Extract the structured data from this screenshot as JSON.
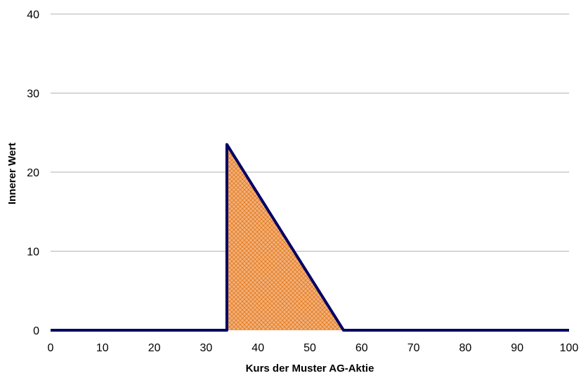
{
  "chart_data": {
    "type": "area",
    "title": "",
    "xlabel": "Kurs der Muster AG-Aktie",
    "ylabel": "Innerer Wert",
    "xlim": [
      0,
      100
    ],
    "ylim": [
      0,
      40
    ],
    "x_ticks": [
      "0",
      "10",
      "20",
      "30",
      "40",
      "50",
      "60",
      "70",
      "80",
      "90",
      "100"
    ],
    "y_ticks": [
      "0",
      "10",
      "20",
      "30",
      "40"
    ],
    "grid": "horizontal",
    "legend": "none",
    "series": [
      {
        "x": [
          0,
          34,
          34,
          56.5,
          56.5,
          100
        ],
        "y": [
          0,
          0,
          23.5,
          0,
          0,
          0
        ]
      }
    ],
    "filled_region": {
      "x": [
        34,
        34,
        56.5
      ],
      "y": [
        0,
        23.5,
        0
      ]
    },
    "colors": {
      "line": "#000066",
      "fill": "#f2a05a",
      "fill_hatch": "#e07a1f",
      "grid": "#999999"
    }
  }
}
